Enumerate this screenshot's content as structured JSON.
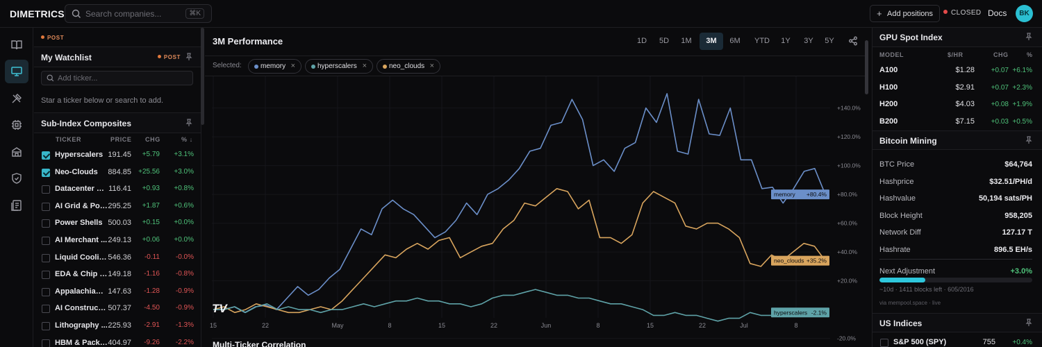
{
  "app": {
    "logo": "DIMETRICS"
  },
  "header": {
    "search_placeholder": "Search companies...",
    "search_shortcut": "⌘K",
    "add_positions": "Add positions",
    "market_status": "CLOSED",
    "docs": "Docs",
    "avatar_initials": "BK"
  },
  "rail": {
    "icons": [
      "book-icon",
      "monitor-icon",
      "tools-icon",
      "chip-icon",
      "building-icon",
      "shield-icon",
      "document-icon"
    ],
    "active": 1
  },
  "watchlist": {
    "top_badge": "POST",
    "title": "My Watchlist",
    "badge": "POST",
    "input_placeholder": "Add ticker...",
    "hint": "Star a ticker below or search to add."
  },
  "subindex": {
    "title": "Sub-Index Composites",
    "columns": [
      "TICKER",
      "PRICE",
      "CHG",
      "% ↓"
    ],
    "rows": [
      {
        "name": "Hyperscalers",
        "price": "191.45",
        "chg": "+5.79",
        "pct": "+3.1%",
        "checked": true,
        "dir": "pos"
      },
      {
        "name": "Neo-Clouds",
        "price": "884.85",
        "chg": "+25.56",
        "pct": "+3.0%",
        "checked": true,
        "dir": "pos"
      },
      {
        "name": "Datacenter R...",
        "price": "116.41",
        "chg": "+0.93",
        "pct": "+0.8%",
        "checked": false,
        "dir": "pos"
      },
      {
        "name": "AI Grid & Pow...",
        "price": "295.25",
        "chg": "+1.87",
        "pct": "+0.6%",
        "checked": false,
        "dir": "pos"
      },
      {
        "name": "Power Shells",
        "price": "500.03",
        "chg": "+0.15",
        "pct": "+0.0%",
        "checked": false,
        "dir": "pos"
      },
      {
        "name": "AI Merchant ...",
        "price": "249.13",
        "chg": "+0.06",
        "pct": "+0.0%",
        "checked": false,
        "dir": "pos"
      },
      {
        "name": "Liquid Cooling",
        "price": "546.36",
        "chg": "-0.11",
        "pct": "-0.0%",
        "checked": false,
        "dir": "neg"
      },
      {
        "name": "EDA & Chip D...",
        "price": "149.18",
        "chg": "-1.16",
        "pct": "-0.8%",
        "checked": false,
        "dir": "neg"
      },
      {
        "name": "Appalachian ...",
        "price": "147.63",
        "chg": "-1.28",
        "pct": "-0.9%",
        "checked": false,
        "dir": "neg"
      },
      {
        "name": "AI Constructi...",
        "price": "507.37",
        "chg": "-4.50",
        "pct": "-0.9%",
        "checked": false,
        "dir": "neg"
      },
      {
        "name": "Lithography ...",
        "price": "225.93",
        "chg": "-2.91",
        "pct": "-1.3%",
        "checked": false,
        "dir": "neg"
      },
      {
        "name": "HBM & Packa...",
        "price": "404.97",
        "chg": "-9.26",
        "pct": "-2.2%",
        "checked": false,
        "dir": "neg"
      }
    ]
  },
  "performance": {
    "title": "3M Performance",
    "ranges": [
      "1D",
      "5D",
      "1M",
      "3M",
      "6M",
      "YTD",
      "1Y",
      "3Y",
      "5Y"
    ],
    "active_range": "3M",
    "selected_label": "Selected:",
    "chips": [
      {
        "name": "memory",
        "color": "#6b8fc9"
      },
      {
        "name": "hyperscalers",
        "color": "#5fa3a8"
      },
      {
        "name": "neo_clouds",
        "color": "#d9a55e"
      }
    ],
    "watermark": "TV",
    "next_section": "Multi-Ticker Correlation"
  },
  "chart_data": {
    "type": "line",
    "x_ticks": [
      "15",
      "22",
      "May",
      "8",
      "15",
      "22",
      "Jun",
      "8",
      "15",
      "22",
      "Jul",
      "8"
    ],
    "y_ticks": [
      "+140.0%",
      "+120.0%",
      "+100.0%",
      "+80.0%",
      "+60.0%",
      "+40.0%",
      "+20.0%",
      "-20.0%"
    ],
    "ylim": [
      -25,
      162
    ],
    "y_unit": "%",
    "series": [
      {
        "name": "memory",
        "color": "#6b8fc9",
        "last_label": "+80.4%",
        "values": [
          0,
          0,
          2,
          -2,
          2,
          3,
          0,
          8,
          16,
          10,
          14,
          22,
          28,
          42,
          56,
          52,
          70,
          76,
          70,
          66,
          58,
          50,
          54,
          62,
          74,
          66,
          80,
          84,
          90,
          98,
          110,
          112,
          128,
          130,
          146,
          132,
          100,
          104,
          96,
          112,
          116,
          140,
          130,
          150,
          110,
          108,
          146,
          122,
          121,
          140,
          104,
          104,
          84,
          85,
          74,
          84,
          96,
          98,
          80
        ]
      },
      {
        "name": "neo_clouds",
        "color": "#d9a55e",
        "last_label": "+35.2%",
        "values": [
          0,
          2,
          -2,
          0,
          4,
          2,
          0,
          -2,
          -2,
          0,
          2,
          0,
          6,
          14,
          22,
          30,
          38,
          36,
          42,
          46,
          42,
          48,
          50,
          36,
          40,
          44,
          46,
          56,
          62,
          74,
          72,
          78,
          84,
          82,
          70,
          76,
          50,
          50,
          46,
          52,
          74,
          82,
          78,
          74,
          58,
          56,
          60,
          60,
          56,
          50,
          32,
          30,
          38,
          34,
          40,
          46,
          44,
          34
        ]
      },
      {
        "name": "hyperscalers",
        "color": "#5fa3a8",
        "last_label": "-2.1%",
        "values": [
          0,
          0,
          2,
          -2,
          2,
          4,
          0,
          2,
          0,
          0,
          -2,
          0,
          0,
          2,
          4,
          2,
          4,
          6,
          6,
          8,
          6,
          6,
          4,
          4,
          2,
          4,
          8,
          10,
          10,
          12,
          14,
          12,
          10,
          10,
          8,
          8,
          6,
          4,
          4,
          2,
          0,
          -4,
          -4,
          -2,
          -4,
          -4,
          -6,
          -8,
          -6,
          -6,
          -2,
          -4,
          -4,
          -2,
          -2,
          -2,
          -2,
          -2
        ]
      }
    ]
  },
  "gpu": {
    "title": "GPU Spot Index",
    "columns": [
      "MODEL",
      "$/HR",
      "CHG",
      "%"
    ],
    "rows": [
      {
        "model": "A100",
        "price": "$1.28",
        "chg": "+0.07",
        "pct": "+6.1%"
      },
      {
        "model": "H100",
        "price": "$2.91",
        "chg": "+0.07",
        "pct": "+2.3%"
      },
      {
        "model": "H200",
        "price": "$4.03",
        "chg": "+0.08",
        "pct": "+1.9%"
      },
      {
        "model": "B200",
        "price": "$7.15",
        "chg": "+0.03",
        "pct": "+0.5%"
      }
    ]
  },
  "bitcoin": {
    "title": "Bitcoin Mining",
    "rows": [
      {
        "label": "BTC Price",
        "value": "$64,764"
      },
      {
        "label": "Hashprice",
        "value": "$32.51/PH/d"
      },
      {
        "label": "Hashvalue",
        "value": "50,194 sats/PH"
      },
      {
        "label": "Block Height",
        "value": "958,205"
      },
      {
        "label": "Network Diff",
        "value": "127.17 T"
      },
      {
        "label": "Hashrate",
        "value": "896.5 EH/s"
      }
    ],
    "next_adjustment_label": "Next Adjustment",
    "next_adjustment_value": "+3.0%",
    "progress_fraction": 0.302,
    "adjustment_detail": "~10d · 1411 blocks left · 605/2016",
    "source": "via mempool.space · live"
  },
  "us_indices": {
    "title": "US Indices",
    "rows": [
      {
        "name": "S&P 500 (SPY)",
        "price": "755",
        "pct": "+0.4%"
      }
    ]
  }
}
